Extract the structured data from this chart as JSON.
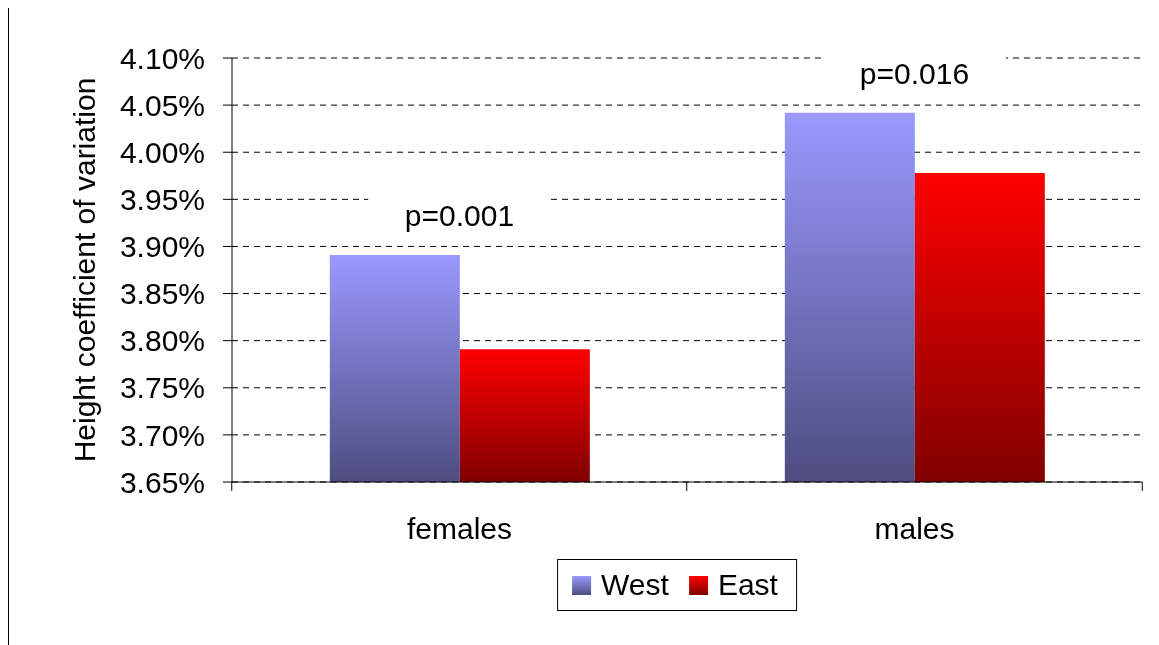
{
  "chart_data": {
    "type": "bar",
    "ylabel": "Height coefficient of variation",
    "categories": [
      "females",
      "males"
    ],
    "series": [
      {
        "name": "West",
        "color": "#9999ff",
        "values": [
          3.891,
          4.042
        ]
      },
      {
        "name": "East",
        "color": "#ff0000",
        "values": [
          3.791,
          3.978
        ]
      }
    ],
    "ylim": [
      3.65,
      4.1
    ],
    "yticks": [
      {
        "value": 3.65,
        "label": "3.65%"
      },
      {
        "value": 3.7,
        "label": "3.70%"
      },
      {
        "value": 3.75,
        "label": "3.75%"
      },
      {
        "value": 3.8,
        "label": "3.80%"
      },
      {
        "value": 3.85,
        "label": "3.85%"
      },
      {
        "value": 3.9,
        "label": "3.90%"
      },
      {
        "value": 3.95,
        "label": "3.95%"
      },
      {
        "value": 4.0,
        "label": "4.00%"
      },
      {
        "value": 4.05,
        "label": "4.05%"
      },
      {
        "value": 4.1,
        "label": "4.10%"
      }
    ],
    "annotations": [
      "p=0.001",
      "p=0.016"
    ],
    "grid": "y",
    "legend": "bottom"
  }
}
